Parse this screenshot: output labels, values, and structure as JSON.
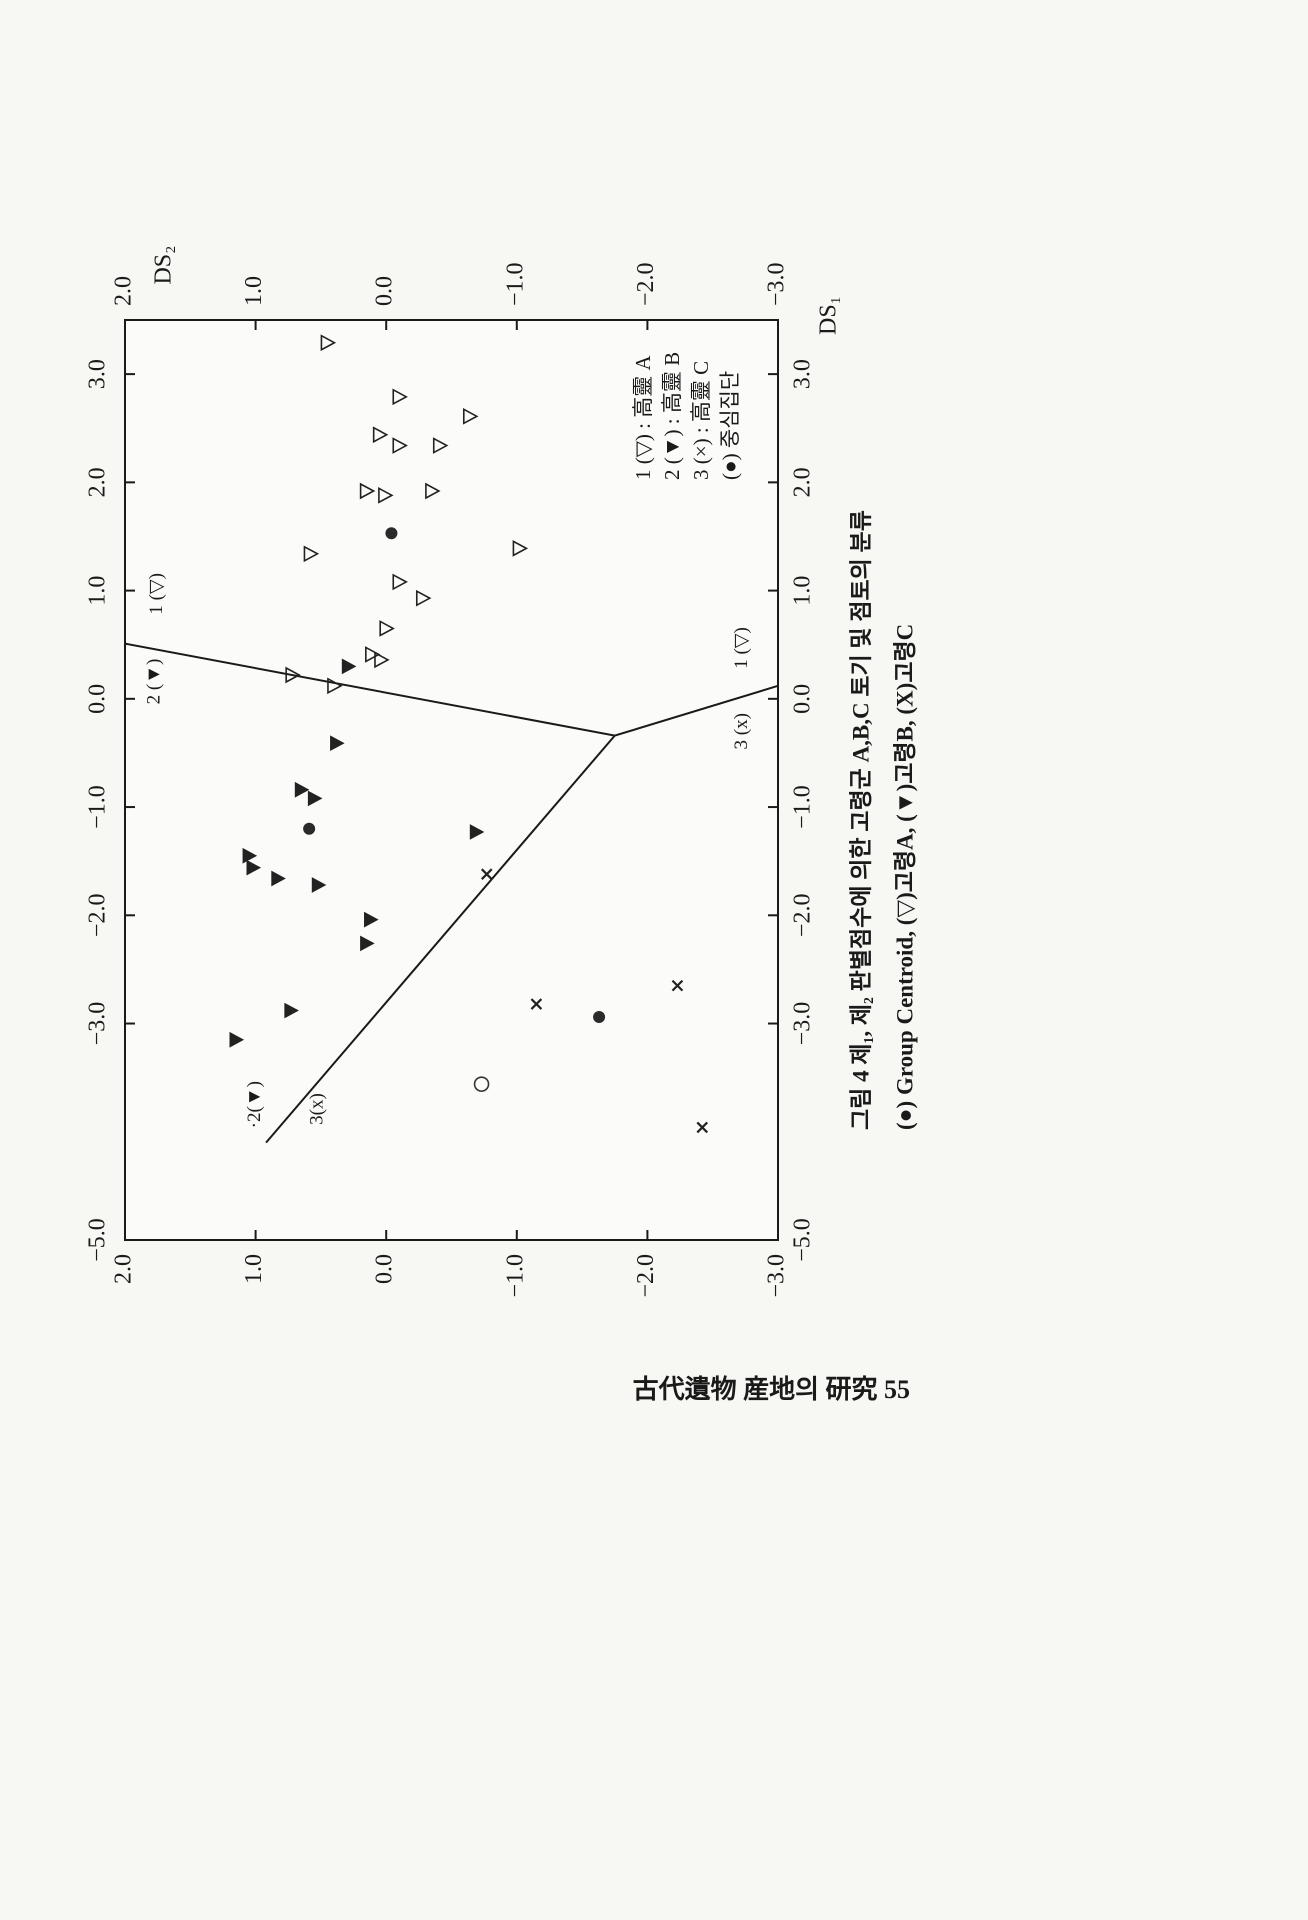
{
  "chart_data": {
    "type": "scatter",
    "x_label": "DS₁",
    "y_label": "DS₂",
    "xlim": [
      -5,
      3.5
    ],
    "ylim": [
      -3,
      2
    ],
    "xticks": [
      {
        "value": -5,
        "label": "−5.0"
      },
      {
        "value": -3,
        "label": "−3.0"
      },
      {
        "value": -2,
        "label": "−2.0"
      },
      {
        "value": -1,
        "label": "−1.0"
      },
      {
        "value": 0,
        "label": "0.0"
      },
      {
        "value": 1,
        "label": "1.0"
      },
      {
        "value": 2,
        "label": "2.0"
      },
      {
        "value": 3,
        "label": "3.0"
      }
    ],
    "yticks": [
      {
        "value": 2,
        "label": "2.0"
      },
      {
        "value": 1,
        "label": "1.0"
      },
      {
        "value": 0,
        "label": "0.0"
      },
      {
        "value": -1,
        "label": "−1.0"
      },
      {
        "value": -2,
        "label": "−2.0"
      },
      {
        "value": -3,
        "label": "−3.0"
      }
    ],
    "series": [
      {
        "name": "1 (▽) : 高靈 A",
        "marker": "triangle-down-open",
        "color": "#222222",
        "x": [
          3.29,
          2.79,
          2.61,
          2.44,
          2.34,
          2.34,
          1.92,
          1.88,
          1.92,
          1.34,
          1.39,
          1.08,
          0.93,
          0.65,
          0.41,
          0.36,
          0.22,
          0.12
        ],
        "y": [
          0.45,
          -0.1,
          -0.64,
          0.05,
          -0.1,
          -0.41,
          0.15,
          0.01,
          -0.35,
          0.58,
          -1.02,
          -0.1,
          -0.28,
          0.0,
          0.11,
          0.04,
          0.72,
          0.4
        ]
      },
      {
        "name": "2 (▼) : 高靈 B",
        "marker": "triangle-down",
        "color": "#222222",
        "x": [
          0.3,
          -0.41,
          -0.84,
          -0.92,
          -1.23,
          -1.45,
          -1.56,
          -1.66,
          -1.72,
          -2.04,
          -2.26,
          -2.88,
          -3.15
        ],
        "y": [
          0.29,
          0.38,
          0.65,
          0.55,
          -0.69,
          1.05,
          1.02,
          0.83,
          0.52,
          0.12,
          0.15,
          0.73,
          1.15
        ]
      },
      {
        "name": "3 (×) : 高靈 C",
        "marker": "x",
        "color": "#222222",
        "x": [
          -1.62,
          -2.82,
          -2.65,
          -3.96
        ],
        "y": [
          -0.77,
          -1.15,
          -2.23,
          -2.42
        ]
      },
      {
        "name": "(●) 중심집단",
        "marker": "circle",
        "color": "#2a2a2a",
        "x": [
          1.53,
          -1.2,
          -2.94
        ],
        "y": [
          -0.04,
          0.59,
          -1.63
        ]
      },
      {
        "marker": "circle-open",
        "color": "#333333",
        "x": [
          -3.56
        ],
        "y": [
          -0.73
        ]
      }
    ],
    "boundaries": [
      {
        "x": [
          0.51,
          -0.34,
          0.12
        ],
        "y": [
          2.0,
          -1.75,
          -3.0
        ]
      },
      {
        "x": [
          -0.34,
          -4.1
        ],
        "y": [
          -1.75,
          0.92
        ]
      }
    ],
    "annotations": [
      {
        "text": "1 (▽)",
        "x": 0.97,
        "y": 1.75
      },
      {
        "text": "2 (▼)",
        "x": 0.16,
        "y": 1.77
      },
      {
        "text": "1 (▽)",
        "x": 0.47,
        "y": -2.73
      },
      {
        "text": "3 (x)",
        "x": -0.3,
        "y": -2.73
      },
      {
        "text": "·2(▼)",
        "x": -3.75,
        "y": 1.0
      },
      {
        "text": "3(x)",
        "x": -3.79,
        "y": 0.52
      }
    ],
    "caption": [
      "그림 4  제₁, 제₂ 판별점수에 의한 고령군 A,B,C 토기 및 점토의 분류",
      "(●) Group Centroid,  (▽)고령A,  (▼)고령B,  (X)고령C"
    ],
    "footer": "古代遺物 産地의 研究  55"
  }
}
